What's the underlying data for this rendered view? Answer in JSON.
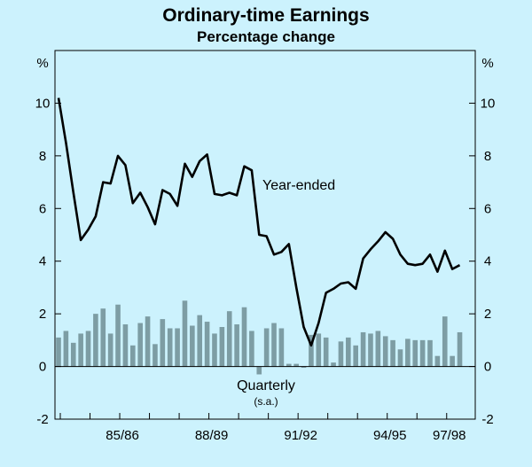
{
  "chart_data": {
    "type": "line",
    "title": "Ordinary-time Earnings",
    "subtitle": "Percentage change",
    "y_unit_left": "%",
    "y_unit_right": "%",
    "ylim": [
      -2,
      12
    ],
    "yticks": [
      -2,
      0,
      2,
      4,
      6,
      8,
      10
    ],
    "xlim": [
      0,
      53
    ],
    "xticks": [
      {
        "label": "85/86",
        "at": 8
      },
      {
        "label": "88/89",
        "at": 20
      },
      {
        "label": "91/92",
        "at": 32
      },
      {
        "label": "94/95",
        "at": 44
      },
      {
        "label": "97/98",
        "at": 52
      }
    ],
    "grid": false,
    "annotations": {
      "year_ended": "Year-ended",
      "quarterly": "Quarterly",
      "quarterly_note": "(s.a.)"
    },
    "colors": {
      "background": "#ccf2fd",
      "line": "#000000",
      "bars": "#7d9da4",
      "axis": "#000000"
    },
    "series": [
      {
        "type": "line",
        "values": [
          10.2,
          8.5,
          6.6,
          4.8,
          5.2,
          5.7,
          7.0,
          6.95,
          8.0,
          7.65,
          6.2,
          6.6,
          6.05,
          5.4,
          6.7,
          6.55,
          6.1,
          7.7,
          7.2,
          7.8,
          8.05,
          6.55,
          6.5,
          6.6,
          6.5,
          7.6,
          7.45,
          5.0,
          4.95,
          4.25,
          4.35,
          4.65,
          3.0,
          1.5,
          0.8,
          1.65,
          2.8,
          2.95,
          3.15,
          3.2,
          2.95,
          4.1,
          4.45,
          4.75,
          5.1,
          4.85,
          4.25,
          3.9,
          3.85,
          3.9,
          4.25,
          3.6,
          4.4,
          3.7,
          3.85
        ]
      },
      {
        "type": "bar",
        "values": [
          1.1,
          1.35,
          0.9,
          1.25,
          1.35,
          2.0,
          2.2,
          1.25,
          2.35,
          1.6,
          0.8,
          1.65,
          1.9,
          0.85,
          1.8,
          1.45,
          1.45,
          2.5,
          1.55,
          1.95,
          1.7,
          1.25,
          1.5,
          2.1,
          1.6,
          2.25,
          1.35,
          -0.3,
          1.45,
          1.65,
          1.45,
          0.1,
          0.1,
          -0.05,
          1.2,
          1.25,
          1.1,
          0.15,
          0.95,
          1.1,
          0.8,
          1.3,
          1.25,
          1.35,
          1.15,
          1.0,
          0.65,
          1.05,
          1.0,
          1.0,
          1.0,
          0.4,
          1.9,
          0.4,
          1.3
        ]
      }
    ]
  }
}
